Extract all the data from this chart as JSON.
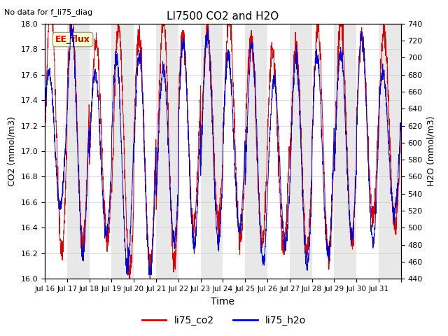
{
  "title": "LI7500 CO2 and H2O",
  "suptitle": "No data for f_li75_diag",
  "xlabel": "Time",
  "ylabel_left": "CO2 (mmol/m3)",
  "ylabel_right": "H2O (mmol/m3)",
  "ylim_left": [
    16.0,
    18.0
  ],
  "ylim_right": [
    440,
    740
  ],
  "yticks_left": [
    16.0,
    16.2,
    16.4,
    16.6,
    16.8,
    17.0,
    17.2,
    17.4,
    17.6,
    17.8,
    18.0
  ],
  "yticks_right": [
    440,
    460,
    480,
    500,
    520,
    540,
    560,
    580,
    600,
    620,
    640,
    660,
    680,
    700,
    720,
    740
  ],
  "xtick_labels": [
    "Jul 16",
    "Jul 17",
    "Jul 18",
    "Jul 19",
    "Jul 20",
    "Jul 21",
    "Jul 22",
    "Jul 23",
    "Jul 24",
    "Jul 25",
    "Jul 26",
    "Jul 27",
    "Jul 28",
    "Jul 29",
    "Jul 30",
    "Jul 31"
  ],
  "co2_color": "#dd0000",
  "h2o_color": "#0000dd",
  "ee_flux_box_color": "#ffffcc",
  "ee_flux_box_text": "EE_flux",
  "band_color": "#e8e8e8",
  "legend_labels": [
    "li75_co2",
    "li75_h2o"
  ],
  "legend_colors": [
    "#dd0000",
    "#0000dd"
  ],
  "background_color": "#ffffff",
  "n_points_per_day": 144,
  "n_days": 16,
  "seed": 42
}
